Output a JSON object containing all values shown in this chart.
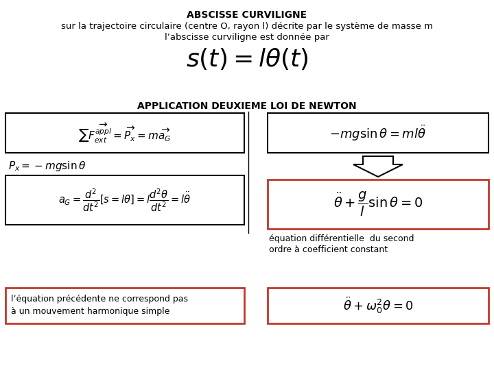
{
  "title": "ABSCISSE CURVILIGNE",
  "subtitle1": "sur la trajectoire circulaire (centre O, rayon l) décrite par le système de masse m",
  "subtitle2": "l’abscisse curviligne est donnée par",
  "main_formula": "$s(t) = l\\theta(t)$",
  "section_title": "APPLICATION DEUXIEME LOI DE NEWTON",
  "eq_diff_text1": "équation différentielle  du second",
  "eq_diff_text2": "ordre à coefficient constant",
  "bottom_left_text1": "l’équation précédente ne correspond pas",
  "bottom_left_text2": "à un mouvement harmonique simple",
  "red_color": "#c0392b",
  "black_color": "#000000",
  "bg_color": "#ffffff",
  "title_fontsize": 10,
  "subtitle_fontsize": 9.5,
  "main_formula_fontsize": 26,
  "section_fontsize": 10,
  "formula_fontsize": 11,
  "small_text_fontsize": 9
}
